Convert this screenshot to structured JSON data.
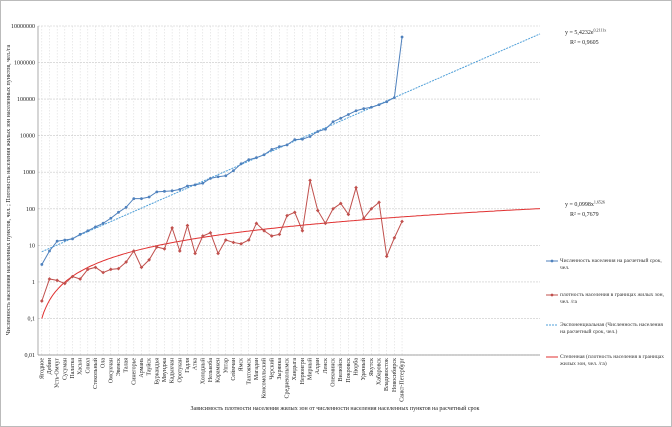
{
  "chart_data": {
    "type": "line",
    "x_label": "Зависимость плотности населения жилых зон  от  численности населения  населенных пунктов  на расчетный срок",
    "y_label": "Численность населения населенных пунктов, чел. ; Плотность населения жилых зон населенных пунктов, чел./га",
    "categories": [
      "Ягодное",
      "Дебин",
      "Усть-Омчуг",
      "Сусуман",
      "Палатка",
      "Хасын",
      "Сокол",
      "Стекольный",
      "Ола",
      "Омсукчан",
      "Эвенск",
      "Талая",
      "Синегорье",
      "Армань",
      "Тауйск",
      "Буркандья",
      "Мяунджа",
      "Кадыкчан",
      "Оротукан",
      "Гадля",
      "Атка",
      "Холодный",
      "Нелькоба",
      "Карамкен",
      "Уптар",
      "Сеймчан",
      "Ямск",
      "Тахтоямск",
      "Магадан",
      "Комсомольский",
      "Черский",
      "Зырянка",
      "Среднеколымск",
      "Хандыга",
      "Нерюнгри",
      "Мирный",
      "Алдан",
      "Ленск",
      "Олекминск",
      "Вилюйск",
      "Покровск",
      "Нюрба",
      "Удачный",
      "Якутск",
      "Хабаровск",
      "Владивосток",
      "Новосибирск",
      "Санкт-Петербург"
    ],
    "series": [
      {
        "name": "Численность населения  на расчетный срок, чел.",
        "color": "#4f81bd",
        "values": [
          3,
          7,
          13,
          14,
          15,
          20,
          25,
          32,
          40,
          55,
          80,
          110,
          190,
          190,
          210,
          290,
          300,
          310,
          340,
          420,
          450,
          500,
          680,
          750,
          800,
          1100,
          1700,
          2200,
          2500,
          3000,
          4200,
          5000,
          5600,
          7800,
          8000,
          9500,
          13000,
          15000,
          24000,
          30000,
          38000,
          48000,
          55000,
          60000,
          70000,
          85000,
          110000,
          5000000
        ]
      },
      {
        "name": "плотность населения в границах жилых зон, чел. /га",
        "color": "#c0504d",
        "values": [
          0.3,
          1.2,
          1.1,
          0.9,
          1.4,
          1.2,
          2.2,
          2.5,
          1.8,
          2.2,
          2.3,
          3.5,
          7,
          2.5,
          4,
          9,
          8,
          30,
          7,
          35,
          6,
          18,
          22,
          6,
          14,
          12,
          11,
          14,
          40,
          25,
          18,
          20,
          65,
          80,
          25,
          600,
          90,
          40,
          100,
          140,
          70,
          380,
          55,
          100,
          150,
          5,
          16,
          45
        ]
      }
    ],
    "trendlines": [
      {
        "name": "Экспоненциальная (Численность населения  на расчетный срок, чел.)",
        "color": "#4f9fd8",
        "kind": "exp",
        "a": 5.4232,
        "b": 0.2111,
        "equation_label": "y = 5,4232e",
        "exponent_label": "0,2111x",
        "r2_label": "R² = 0,9605"
      },
      {
        "name": "Степенная (плотность населения в границах жилых зон, чел. /га)",
        "color": "#e03030",
        "kind": "power",
        "a": 0.0998,
        "b": 1.6526,
        "equation_label": "y = 0,0998x",
        "exponent_label": "1,6526",
        "r2_label": "R² = 0,7679"
      }
    ],
    "xlim": [
      0.5,
      66
    ],
    "ylim": [
      0.01,
      10000000
    ],
    "log_y": true,
    "yticks": [
      {
        "value": 0.01,
        "label": "0,01"
      },
      {
        "value": 0.1,
        "label": "0,1"
      },
      1,
      10,
      100,
      1000,
      10000,
      100000,
      1000000,
      10000000
    ],
    "grid": true
  }
}
